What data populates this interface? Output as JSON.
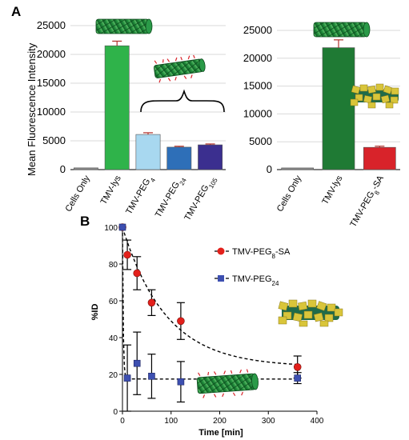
{
  "panels": {
    "a": "A",
    "b": "B"
  },
  "colors": {
    "cells_only": "#8c8c8c",
    "tmv_lys_1": "#2fb34a",
    "peg4": "#a8d8f0",
    "peg24": "#2e6fb8",
    "peg105": "#3b2f8f",
    "tmv_lys_2": "#1f7a34",
    "peg8_sa": "#d8232a",
    "error": "#b0302a",
    "series_red": "#e3201b",
    "series_blue": "#3d4fb0"
  },
  "icons": [
    "tmv-rod-icon",
    "tmv-rod-pegylated-icon",
    "tmv-rod-sa-coated-icon"
  ],
  "chart_data": [
    {
      "type": "bar",
      "panel": "A-left",
      "ylabel": "Mean Fluorescence Intensity",
      "ylim": [
        0,
        25000
      ],
      "yticks": [
        "0",
        "5000",
        "10000",
        "15000",
        "20000",
        "25000"
      ],
      "grid": true,
      "categories": [
        "Cells Only",
        "TMV-lys",
        "TMV-PEG4",
        "TMV-PEG24",
        "TMV-PEG105"
      ],
      "category_parts": [
        {
          "main": "Cells Only",
          "sub": "",
          "tail": ""
        },
        {
          "main": "TMV-lys",
          "sub": "",
          "tail": ""
        },
        {
          "main": "TMV-PEG",
          "sub": "4",
          "tail": ""
        },
        {
          "main": "TMV-PEG",
          "sub": "24",
          "tail": ""
        },
        {
          "main": "TMV-PEG",
          "sub": "105",
          "tail": ""
        }
      ],
      "values": [
        300,
        21500,
        6100,
        3900,
        4300
      ],
      "errors": [
        0,
        800,
        300,
        150,
        150
      ]
    },
    {
      "type": "bar",
      "panel": "A-right",
      "ylabel": "",
      "ylim": [
        0,
        25000
      ],
      "yticks": [
        "0",
        "5000",
        "10000",
        "15000",
        "20000",
        "25000"
      ],
      "grid": true,
      "categories": [
        "Cells Only",
        "TMV-lys",
        "TMV-PEG8-SA"
      ],
      "category_parts": [
        {
          "main": "Cells Only",
          "sub": "",
          "tail": ""
        },
        {
          "main": "TMV-lys",
          "sub": "",
          "tail": ""
        },
        {
          "main": "TMV-PEG",
          "sub": "8",
          "tail": "-SA"
        }
      ],
      "values": [
        300,
        21900,
        4000
      ],
      "errors": [
        0,
        1400,
        200
      ]
    },
    {
      "type": "scatter",
      "panel": "B",
      "xlabel": "Time [min]",
      "ylabel": "%ID",
      "xlim": [
        0,
        400
      ],
      "ylim": [
        0,
        100
      ],
      "xticks": [
        "0",
        "100",
        "200",
        "300",
        "400"
      ],
      "yticks": [
        "0",
        "20",
        "40",
        "60",
        "80",
        "100"
      ],
      "legend_position": "top-right",
      "series": [
        {
          "name": "TMV-PEG8-SA",
          "name_parts": {
            "main": "TMV-PEG",
            "sub": "8",
            "tail": "-SA"
          },
          "marker": "circle",
          "x": [
            0,
            10,
            30,
            60,
            120,
            360
          ],
          "y": [
            100,
            85,
            75,
            59,
            49,
            24
          ],
          "errors": [
            0,
            8,
            9,
            7,
            10,
            6
          ]
        },
        {
          "name": "TMV-PEG24",
          "name_parts": {
            "main": "TMV-PEG",
            "sub": "24",
            "tail": ""
          },
          "marker": "square",
          "x": [
            0,
            10,
            30,
            60,
            120,
            360
          ],
          "y": [
            100,
            18,
            26,
            19,
            16,
            18
          ],
          "errors": [
            0,
            18,
            17,
            12,
            11,
            3
          ]
        }
      ]
    }
  ]
}
